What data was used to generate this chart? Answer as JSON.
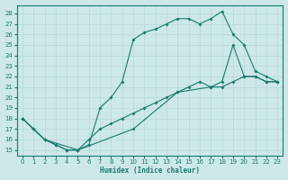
{
  "xlabel": "Humidex (Indice chaleur)",
  "xlim": [
    -0.5,
    23.5
  ],
  "ylim_low": 14.5,
  "ylim_high": 28.8,
  "yticks": [
    15,
    16,
    17,
    18,
    19,
    20,
    21,
    22,
    23,
    24,
    25,
    26,
    27,
    28
  ],
  "xticks": [
    0,
    1,
    2,
    3,
    4,
    5,
    6,
    7,
    8,
    9,
    10,
    11,
    12,
    13,
    14,
    15,
    16,
    17,
    18,
    19,
    20,
    21,
    22,
    23
  ],
  "bg_color": "#cce8e8",
  "line_color": "#1a7a6e",
  "grid_color": "#b8d8d8",
  "line1_x": [
    0,
    1,
    2,
    3,
    4,
    5,
    6,
    7,
    8,
    9,
    10,
    11,
    12,
    13,
    14,
    15,
    16,
    17,
    18,
    19,
    20,
    21,
    22,
    23
  ],
  "line1_y": [
    18,
    17,
    16,
    15.5,
    15,
    15,
    15.5,
    19,
    20,
    21.5,
    25.5,
    26.2,
    26.5,
    27,
    27.5,
    27.5,
    27,
    27.5,
    28.2,
    26,
    25,
    22.5,
    22,
    21.5
  ],
  "line2_x": [
    0,
    1,
    2,
    3,
    4,
    5,
    6,
    7,
    8,
    9,
    10,
    11,
    12,
    13,
    14,
    15,
    16,
    17,
    18,
    19,
    20,
    21,
    22,
    23
  ],
  "line2_y": [
    18,
    17,
    16,
    15.5,
    15,
    15,
    16,
    17,
    17.5,
    18,
    18.5,
    19,
    19.5,
    20,
    20.5,
    21,
    21.5,
    21,
    21.5,
    25,
    22,
    22,
    21.5,
    21.5
  ],
  "line3_x": [
    0,
    2,
    5,
    10,
    14,
    17,
    18,
    19,
    20,
    21,
    22,
    23
  ],
  "line3_y": [
    18,
    16,
    15,
    17,
    20.5,
    21,
    21,
    21.5,
    22,
    22,
    21.5,
    21.5
  ]
}
